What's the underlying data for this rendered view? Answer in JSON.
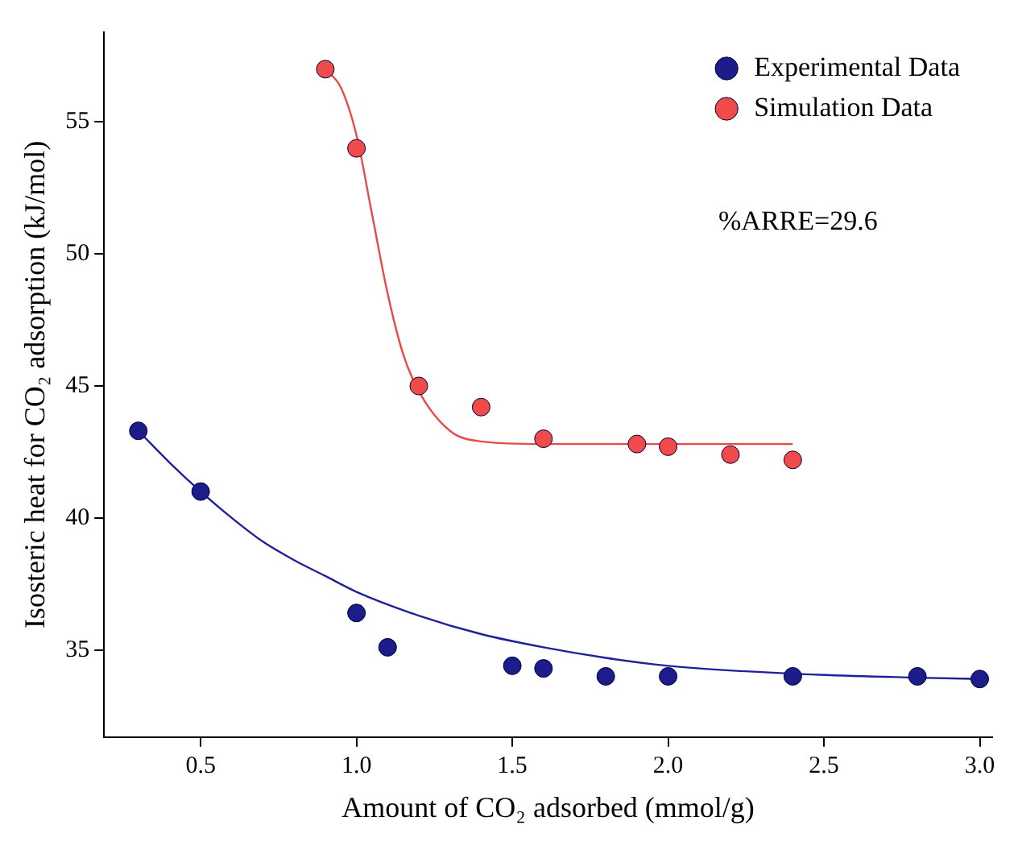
{
  "chart_data": {
    "type": "scatter",
    "xlabel": "Amount of CO₂ adsorbed (mmol/g)",
    "ylabel": "Isosteric heat for CO₂ adsorption (kJ/mol)",
    "xlim": [
      0.19,
      3.04
    ],
    "ylim": [
      31.7,
      58.4
    ],
    "xticks": [
      0.5,
      {
        "value": 1,
        "label": "1.0"
      },
      1.5,
      {
        "value": 2,
        "label": "2.0"
      },
      2.5,
      {
        "value": 3,
        "label": "3.0"
      }
    ],
    "yticks": [
      35,
      40,
      45,
      50,
      55
    ],
    "legend": "top right",
    "marker": "circle",
    "grid": false,
    "annotations": [
      "%ARRE=29.6"
    ],
    "series": [
      {
        "name": "Experimental Data",
        "color": "#1c1c8a",
        "x": [
          0.3,
          0.5,
          1.0,
          1.1,
          1.5,
          1.6,
          1.8,
          2.0,
          2.4,
          2.8,
          3.0
        ],
        "values": [
          43.3,
          41.0,
          36.4,
          35.1,
          34.4,
          34.3,
          34.0,
          34.0,
          34.0,
          34.0,
          33.9
        ]
      },
      {
        "name": "Simulation Data",
        "color": "#f04a4a",
        "x": [
          0.9,
          1.0,
          1.2,
          1.4,
          1.6,
          1.9,
          2.0,
          2.2,
          2.4
        ],
        "values": [
          57.0,
          54.0,
          45.0,
          44.2,
          43.0,
          42.8,
          42.7,
          42.4,
          42.2
        ]
      },
      {
        "type": "line",
        "marker": "none",
        "color": "#20209a",
        "x": [
          0.3,
          0.4,
          0.5,
          0.6,
          0.7,
          0.8,
          0.9,
          1.0,
          1.2,
          1.4,
          1.6,
          1.8,
          2.0,
          2.4,
          2.8,
          3.0
        ],
        "values": [
          43.3,
          42.1,
          41.0,
          40.0,
          39.1,
          38.4,
          37.8,
          37.2,
          36.3,
          35.6,
          35.1,
          34.7,
          34.4,
          34.1,
          33.95,
          33.9
        ]
      },
      {
        "type": "line",
        "marker": "none",
        "color": "#e84a4a",
        "x": [
          0.9,
          0.95,
          1.0,
          1.05,
          1.1,
          1.15,
          1.2,
          1.3,
          1.4,
          1.6,
          2.4
        ],
        "values": [
          57.0,
          56.3,
          54.5,
          51.5,
          48.5,
          46.2,
          44.8,
          43.3,
          42.9,
          42.8,
          42.8
        ]
      }
    ]
  }
}
